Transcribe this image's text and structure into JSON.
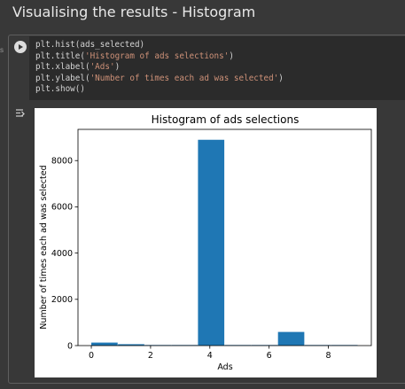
{
  "section": {
    "title": "Visualising the results - Histogram",
    "gutter_mark": "s"
  },
  "code_cell": {
    "lines": [
      [
        {
          "t": "plt.hist(ads_selected)",
          "k": "plain"
        }
      ],
      [
        {
          "t": "plt.title(",
          "k": "plain"
        },
        {
          "t": "'Histogram of ads selections'",
          "k": "str"
        },
        {
          "t": ")",
          "k": "plain"
        }
      ],
      [
        {
          "t": "plt.xlabel(",
          "k": "plain"
        },
        {
          "t": "'Ads'",
          "k": "str"
        },
        {
          "t": ")",
          "k": "plain"
        }
      ],
      [
        {
          "t": "plt.ylabel(",
          "k": "plain"
        },
        {
          "t": "'Number of times each ad was selected'",
          "k": "str"
        },
        {
          "t": ")",
          "k": "plain"
        }
      ],
      [
        {
          "t": "plt.show()",
          "k": "plain"
        }
      ]
    ]
  },
  "icons": {
    "run": "play-icon",
    "output": "output-toggle-icon"
  },
  "colors": {
    "bar": "#1f77b4",
    "string_token": "#ce9178"
  },
  "chart_data": {
    "type": "bar",
    "title": "Histogram of ads selections",
    "xlabel": "Ads",
    "ylabel": "Number of times each ad was selected",
    "bins": [
      {
        "x0": 0.0,
        "x1": 0.9,
        "value": 130
      },
      {
        "x0": 0.9,
        "x1": 1.8,
        "value": 60
      },
      {
        "x0": 1.8,
        "x1": 2.7,
        "value": 25
      },
      {
        "x0": 2.7,
        "x1": 3.6,
        "value": 25
      },
      {
        "x0": 3.6,
        "x1": 4.5,
        "value": 8900
      },
      {
        "x0": 4.5,
        "x1": 5.4,
        "value": 25
      },
      {
        "x0": 5.4,
        "x1": 6.3,
        "value": 25
      },
      {
        "x0": 6.3,
        "x1": 7.2,
        "value": 590
      },
      {
        "x0": 7.2,
        "x1": 8.1,
        "value": 25
      },
      {
        "x0": 8.1,
        "x1": 9.0,
        "value": 25
      }
    ],
    "xlim": [
      -0.45,
      9.45
    ],
    "ylim": [
      0,
      9350
    ],
    "xticks": [
      0,
      2,
      4,
      6,
      8
    ],
    "xtick_labels": [
      "0",
      "2",
      "4",
      "6",
      "8"
    ],
    "yticks": [
      0,
      2000,
      4000,
      6000,
      8000
    ],
    "ytick_labels": [
      "0",
      "2000",
      "4000",
      "6000",
      "8000"
    ],
    "grid": false
  }
}
